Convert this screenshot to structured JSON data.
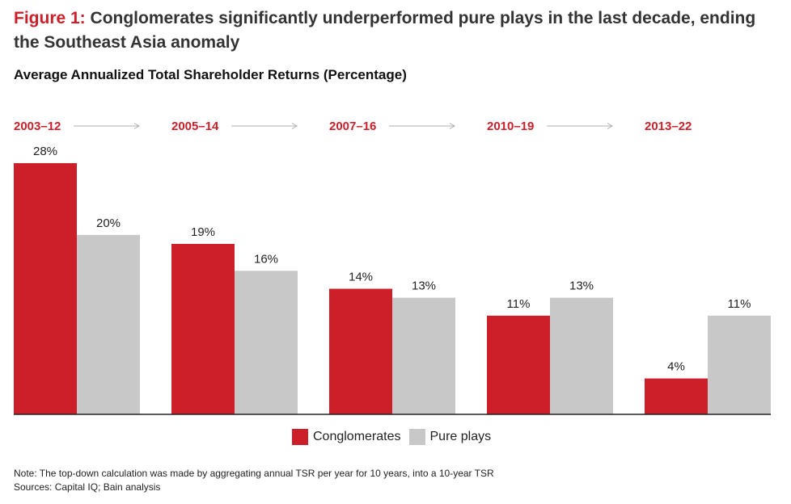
{
  "figure": {
    "label": "Figure 1:",
    "title": " Conglomerates significantly underperformed pure plays in the last decade, ending the Southeast Asia anomaly"
  },
  "subtitle": "Average Annualized Total Shareholder Returns (Percentage)",
  "colors": {
    "conglomerates": "#cc1f2a",
    "pure_plays": "#c8c8c8",
    "period_label": "#cc1f2a",
    "arrow": "#b0b0b0",
    "baseline": "#222222"
  },
  "chart_data": {
    "type": "bar",
    "categories": [
      "2003–12",
      "2005–14",
      "2007–16",
      "2010–19",
      "2013–22"
    ],
    "series": [
      {
        "name": "Conglomerates",
        "values": [
          28,
          19,
          14,
          11,
          4
        ]
      },
      {
        "name": "Pure plays",
        "values": [
          20,
          16,
          13,
          13,
          11
        ]
      }
    ],
    "value_suffix": "%",
    "ylim": [
      0,
      28
    ],
    "grid": false,
    "legend": "bottom-center",
    "title": "Average Annualized Total Shareholder Returns (Percentage)",
    "xlabel": "",
    "ylabel": ""
  },
  "notes": {
    "note": "Note: The top-down calculation was made by aggregating annual TSR per year for 10 years, into a 10-year TSR",
    "sources": "Sources: Capital IQ; Bain analysis"
  }
}
